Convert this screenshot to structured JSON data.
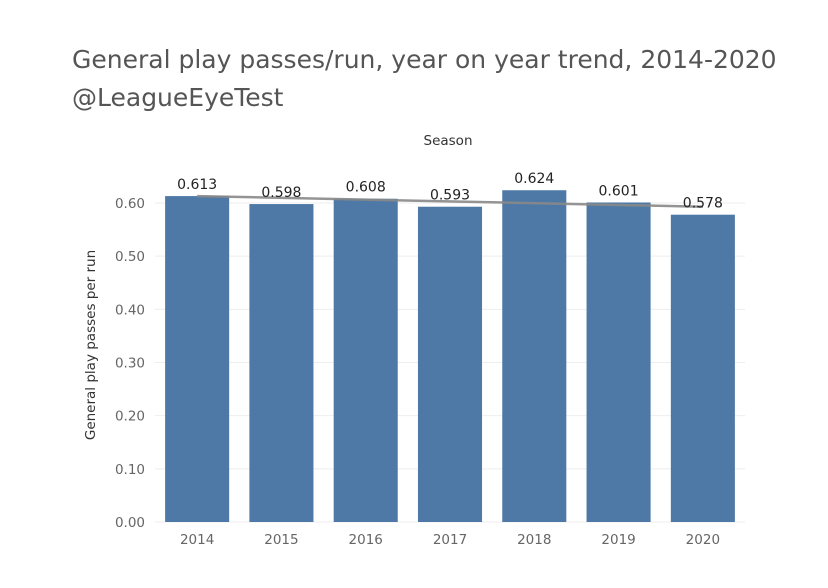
{
  "title": "General play passes/run, year on year trend, 2014-2020",
  "subtitle": "@LeagueEyeTest",
  "chart_data": {
    "type": "bar",
    "column_header": "Season",
    "categories": [
      "2014",
      "2015",
      "2016",
      "2017",
      "2018",
      "2019",
      "2020"
    ],
    "values": [
      0.613,
      0.598,
      0.608,
      0.593,
      0.624,
      0.601,
      0.578
    ],
    "data_labels": [
      "0.613",
      "0.598",
      "0.608",
      "0.593",
      "0.624",
      "0.601",
      "0.578"
    ],
    "ylabel": "General play passes per run",
    "yticks": [
      "0.00",
      "0.10",
      "0.20",
      "0.30",
      "0.40",
      "0.50",
      "0.60"
    ],
    "ylim": [
      0,
      0.66
    ],
    "trend_line": {
      "start": 0.613,
      "end": 0.593
    },
    "grid": true,
    "colors": {
      "bar": "#4e79a7",
      "trend": "#888888",
      "grid": "#eeeeee"
    }
  }
}
